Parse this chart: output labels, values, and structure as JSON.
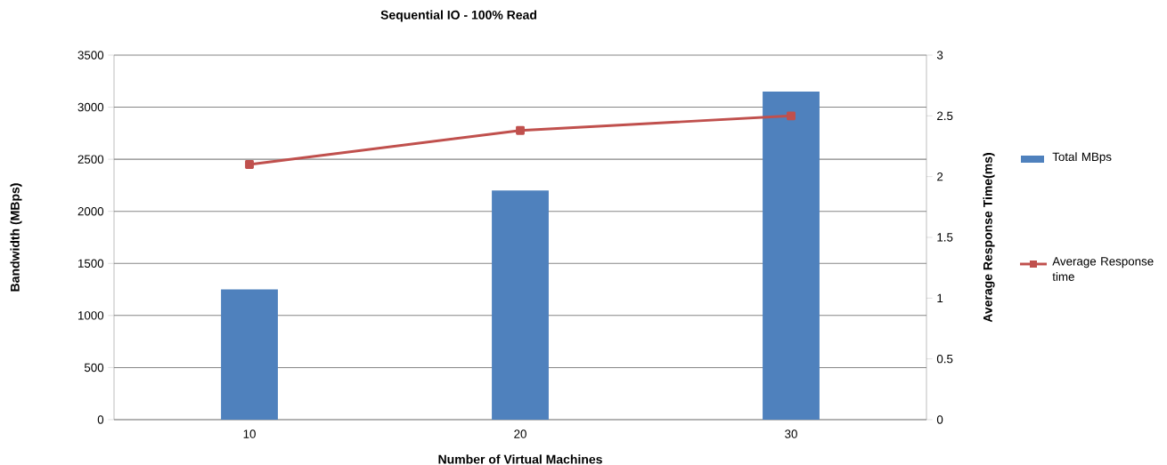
{
  "chart_data": {
    "type": "bar",
    "title": "Sequential IO - 100% Read",
    "xlabel": "Number of Virtual Machines",
    "ylabel": "Bandwidth (MBps)",
    "y2label": "Average Response Time(ms)",
    "categories": [
      "10",
      "20",
      "30"
    ],
    "series": [
      {
        "name": "Total MBps",
        "color": "#4f81bd",
        "values": [
          1250,
          2200,
          3150
        ]
      },
      {
        "name": "Average Response time",
        "type": "line",
        "axis": "y2",
        "color": "#c0504d",
        "marker": "square",
        "line_style": "solid",
        "values": [
          2.1,
          2.38,
          2.5
        ]
      }
    ],
    "ylim": [
      0,
      3500
    ],
    "yticks": [
      0,
      500,
      1000,
      1500,
      2000,
      2500,
      3000,
      3500
    ],
    "y2lim": [
      0,
      3
    ],
    "y2ticks": [
      0,
      0.5,
      1,
      1.5,
      2,
      2.5,
      3
    ],
    "grid": "y",
    "legend": "right"
  }
}
